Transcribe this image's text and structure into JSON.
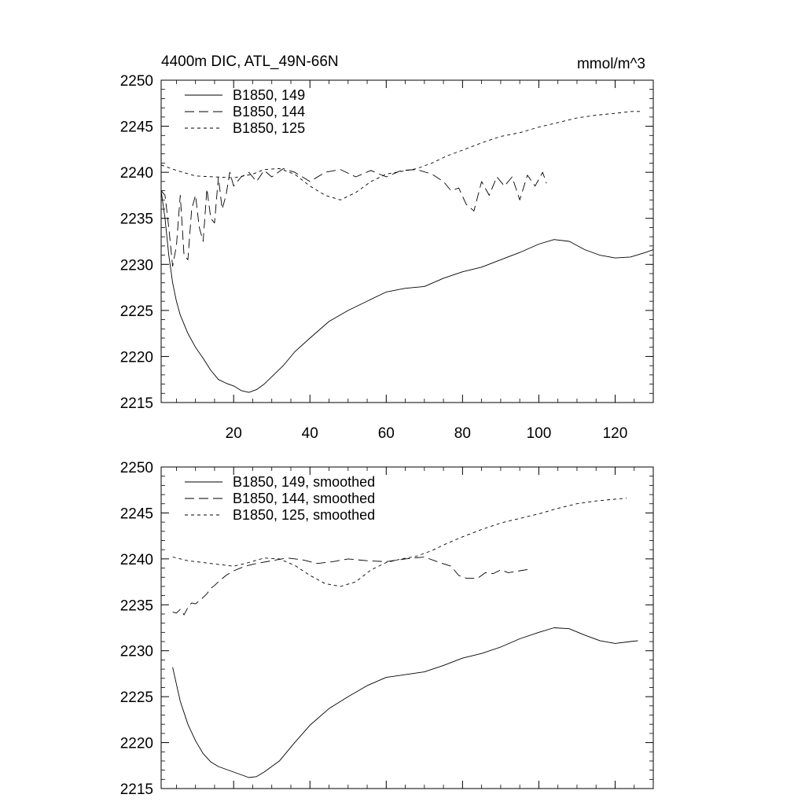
{
  "chart_data": [
    {
      "type": "line",
      "title": "4400m DIC, ATL_49N-66N",
      "units": "mmol/m^3",
      "xlim": [
        1,
        130
      ],
      "ylim": [
        2215,
        2250
      ],
      "xticks": [
        20,
        40,
        60,
        80,
        100,
        120
      ],
      "yticks": [
        2215,
        2220,
        2225,
        2230,
        2235,
        2240,
        2245,
        2250
      ],
      "x_tick_labels_shown": true,
      "legend_position": "top-left",
      "series": [
        {
          "name": "B1850, 149",
          "dash": "solid",
          "points": [
            [
              1,
              2238
            ],
            [
              2,
              2235
            ],
            [
              3,
              2231
            ],
            [
              4,
              2228
            ],
            [
              5,
              2226
            ],
            [
              6,
              2224.5
            ],
            [
              8,
              2222.5
            ],
            [
              10,
              2221
            ],
            [
              12,
              2219.8
            ],
            [
              14,
              2218.5
            ],
            [
              16,
              2217.5
            ],
            [
              18,
              2217.1
            ],
            [
              20,
              2216.8
            ],
            [
              22,
              2216.3
            ],
            [
              24,
              2216.1
            ],
            [
              26,
              2216.4
            ],
            [
              28,
              2217
            ],
            [
              30,
              2217.8
            ],
            [
              33,
              2219
            ],
            [
              36,
              2220.5
            ],
            [
              40,
              2222
            ],
            [
              45,
              2223.8
            ],
            [
              50,
              2225
            ],
            [
              55,
              2226
            ],
            [
              60,
              2227
            ],
            [
              65,
              2227.4
            ],
            [
              70,
              2227.6
            ],
            [
              75,
              2228.5
            ],
            [
              80,
              2229.2
            ],
            [
              85,
              2229.7
            ],
            [
              90,
              2230.5
            ],
            [
              95,
              2231.3
            ],
            [
              100,
              2232.2
            ],
            [
              104,
              2232.7
            ],
            [
              108,
              2232.5
            ],
            [
              112,
              2231.6
            ],
            [
              116,
              2231
            ],
            [
              120,
              2230.7
            ],
            [
              124,
              2230.8
            ],
            [
              128,
              2231.3
            ],
            [
              130,
              2231.6
            ]
          ]
        },
        {
          "name": "B1850, 144",
          "dash": "long-dash",
          "points": [
            [
              1,
              2238
            ],
            [
              2,
              2237.5
            ],
            [
              3,
              2234
            ],
            [
              4,
              2229.8
            ],
            [
              5,
              2232
            ],
            [
              6,
              2237.5
            ],
            [
              7,
              2231
            ],
            [
              8,
              2230.5
            ],
            [
              9,
              2236
            ],
            [
              10,
              2237.5
            ],
            [
              11,
              2234
            ],
            [
              12,
              2232.5
            ],
            [
              13,
              2238.2
            ],
            [
              14,
              2235
            ],
            [
              15,
              2234.5
            ],
            [
              16,
              2239.5
            ],
            [
              17,
              2236
            ],
            [
              18,
              2237.5
            ],
            [
              19,
              2240
            ],
            [
              20,
              2238.5
            ],
            [
              22,
              2239.5
            ],
            [
              24,
              2240
            ],
            [
              26,
              2239
            ],
            [
              28,
              2240.2
            ],
            [
              30,
              2239.5
            ],
            [
              33,
              2240.4
            ],
            [
              36,
              2240
            ],
            [
              40,
              2239
            ],
            [
              44,
              2240
            ],
            [
              48,
              2240.3
            ],
            [
              52,
              2239.5
            ],
            [
              56,
              2240.2
            ],
            [
              60,
              2239.5
            ],
            [
              64,
              2240.2
            ],
            [
              68,
              2240.3
            ],
            [
              72,
              2239.8
            ],
            [
              75,
              2239
            ],
            [
              77,
              2238
            ],
            [
              79,
              2238.3
            ],
            [
              81,
              2236.5
            ],
            [
              83,
              2235.8
            ],
            [
              85,
              2239
            ],
            [
              87,
              2237.5
            ],
            [
              89,
              2239.5
            ],
            [
              91,
              2238.5
            ],
            [
              93,
              2239.5
            ],
            [
              95,
              2237
            ],
            [
              97,
              2239.7
            ],
            [
              99,
              2238.5
            ],
            [
              101,
              2240
            ],
            [
              102,
              2238.8
            ]
          ]
        },
        {
          "name": "B1850, 125",
          "dash": "short-dash",
          "points": [
            [
              1,
              2240.8
            ],
            [
              5,
              2240.2
            ],
            [
              10,
              2239.6
            ],
            [
              15,
              2239.5
            ],
            [
              20,
              2239.4
            ],
            [
              25,
              2239.8
            ],
            [
              28,
              2240.3
            ],
            [
              32,
              2240.4
            ],
            [
              36,
              2239.8
            ],
            [
              40,
              2238.5
            ],
            [
              44,
              2237.5
            ],
            [
              48,
              2237
            ],
            [
              52,
              2237.8
            ],
            [
              56,
              2239
            ],
            [
              60,
              2239.8
            ],
            [
              64,
              2240.1
            ],
            [
              68,
              2240.4
            ],
            [
              72,
              2241
            ],
            [
              76,
              2241.8
            ],
            [
              80,
              2242.4
            ],
            [
              85,
              2243.2
            ],
            [
              90,
              2243.9
            ],
            [
              95,
              2244.3
            ],
            [
              100,
              2244.9
            ],
            [
              105,
              2245.4
            ],
            [
              110,
              2245.9
            ],
            [
              115,
              2246.2
            ],
            [
              120,
              2246.4
            ],
            [
              124,
              2246.6
            ],
            [
              127,
              2246.6
            ]
          ]
        }
      ]
    },
    {
      "type": "line",
      "title": "",
      "units": "",
      "xlim": [
        1,
        130
      ],
      "ylim": [
        2215,
        2250
      ],
      "xticks": [
        20,
        40,
        60,
        80,
        100,
        120
      ],
      "yticks": [
        2215,
        2220,
        2225,
        2230,
        2235,
        2240,
        2245,
        2250
      ],
      "x_tick_labels_shown": false,
      "legend_position": "top-left",
      "series": [
        {
          "name": "B1850, 149, smoothed",
          "dash": "solid",
          "points": [
            [
              4,
              2228.2
            ],
            [
              6,
              2224.5
            ],
            [
              8,
              2222
            ],
            [
              10,
              2220.2
            ],
            [
              12,
              2218.8
            ],
            [
              14,
              2217.9
            ],
            [
              16,
              2217.4
            ],
            [
              20,
              2216.8
            ],
            [
              24,
              2216.2
            ],
            [
              26,
              2216.3
            ],
            [
              28,
              2216.8
            ],
            [
              32,
              2218
            ],
            [
              36,
              2220
            ],
            [
              40,
              2221.9
            ],
            [
              45,
              2223.7
            ],
            [
              50,
              2225
            ],
            [
              55,
              2226.2
            ],
            [
              60,
              2227.1
            ],
            [
              65,
              2227.4
            ],
            [
              70,
              2227.7
            ],
            [
              75,
              2228.4
            ],
            [
              80,
              2229.2
            ],
            [
              85,
              2229.7
            ],
            [
              90,
              2230.4
            ],
            [
              95,
              2231.3
            ],
            [
              100,
              2232
            ],
            [
              104,
              2232.5
            ],
            [
              108,
              2232.4
            ],
            [
              112,
              2231.7
            ],
            [
              116,
              2231.1
            ],
            [
              120,
              2230.8
            ],
            [
              124,
              2231
            ],
            [
              126,
              2231.1
            ]
          ]
        },
        {
          "name": "B1850, 144, smoothed",
          "dash": "long-dash",
          "points": [
            [
              4,
              2234.2
            ],
            [
              5,
              2234.1
            ],
            [
              6,
              2234.5
            ],
            [
              7,
              2233.9
            ],
            [
              8,
              2234.7
            ],
            [
              9,
              2235.2
            ],
            [
              10,
              2235.1
            ],
            [
              12,
              2235.8
            ],
            [
              13,
              2236.2
            ],
            [
              14,
              2236.8
            ],
            [
              15,
              2237.1
            ],
            [
              16,
              2237.5
            ],
            [
              18,
              2238.2
            ],
            [
              20,
              2238.7
            ],
            [
              23,
              2239.2
            ],
            [
              26,
              2239.5
            ],
            [
              30,
              2239.8
            ],
            [
              34,
              2240.1
            ],
            [
              38,
              2239.9
            ],
            [
              42,
              2239.5
            ],
            [
              46,
              2239.7
            ],
            [
              50,
              2240
            ],
            [
              55,
              2239.8
            ],
            [
              60,
              2239.7
            ],
            [
              65,
              2240
            ],
            [
              70,
              2240.2
            ],
            [
              74,
              2239.6
            ],
            [
              77,
              2239.2
            ],
            [
              79,
              2238.2
            ],
            [
              81,
              2237.9
            ],
            [
              84,
              2237.9
            ],
            [
              86,
              2238.5
            ],
            [
              88,
              2238.4
            ],
            [
              90,
              2238.8
            ],
            [
              92,
              2238.5
            ],
            [
              95,
              2238.7
            ],
            [
              98,
              2238.9
            ]
          ]
        },
        {
          "name": "B1850, 125, smoothed",
          "dash": "short-dash",
          "points": [
            [
              4,
              2240.2
            ],
            [
              8,
              2239.8
            ],
            [
              12,
              2239.6
            ],
            [
              16,
              2239.4
            ],
            [
              20,
              2239.2
            ],
            [
              24,
              2239.6
            ],
            [
              28,
              2240.1
            ],
            [
              32,
              2240
            ],
            [
              36,
              2239.3
            ],
            [
              40,
              2238.2
            ],
            [
              44,
              2237.3
            ],
            [
              48,
              2237
            ],
            [
              52,
              2237.5
            ],
            [
              56,
              2238.8
            ],
            [
              60,
              2239.6
            ],
            [
              64,
              2240
            ],
            [
              68,
              2240.3
            ],
            [
              72,
              2240.9
            ],
            [
              76,
              2241.7
            ],
            [
              80,
              2242.4
            ],
            [
              85,
              2243.2
            ],
            [
              90,
              2243.9
            ],
            [
              95,
              2244.4
            ],
            [
              100,
              2244.9
            ],
            [
              105,
              2245.5
            ],
            [
              110,
              2246
            ],
            [
              115,
              2246.3
            ],
            [
              120,
              2246.5
            ],
            [
              123,
              2246.6
            ]
          ]
        }
      ]
    }
  ]
}
